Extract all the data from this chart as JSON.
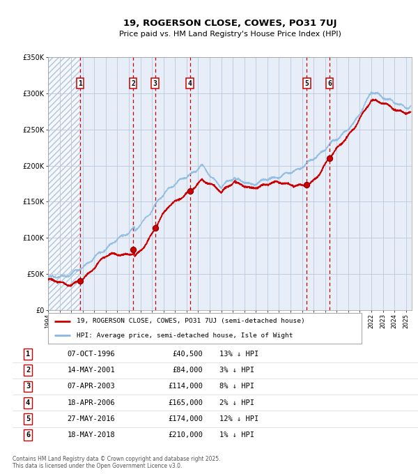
{
  "title": "19, ROGERSON CLOSE, COWES, PO31 7UJ",
  "subtitle": "Price paid vs. HM Land Registry's House Price Index (HPI)",
  "hpi_label": "HPI: Average price, semi-detached house, Isle of Wight",
  "price_label": "19, ROGERSON CLOSE, COWES, PO31 7UJ (semi-detached house)",
  "sales": [
    {
      "num": 1,
      "date": "07-OCT-1996",
      "year": 1996.77,
      "price": 40500,
      "pct": "13%"
    },
    {
      "num": 2,
      "date": "14-MAY-2001",
      "year": 2001.37,
      "price": 84000,
      "pct": "3%"
    },
    {
      "num": 3,
      "date": "07-APR-2003",
      "year": 2003.27,
      "price": 114000,
      "pct": "8%"
    },
    {
      "num": 4,
      "date": "18-APR-2006",
      "year": 2006.3,
      "price": 165000,
      "pct": "2%"
    },
    {
      "num": 5,
      "date": "27-MAY-2016",
      "year": 2016.4,
      "price": 174000,
      "pct": "12%"
    },
    {
      "num": 6,
      "date": "18-MAY-2018",
      "year": 2018.38,
      "price": 210000,
      "pct": "1%"
    }
  ],
  "bg_color": "#e8eef8",
  "grid_color": "#b8c8dc",
  "sale_vline_color": "#cc0000",
  "price_line_color": "#cc0000",
  "hpi_line_color": "#88b8e0",
  "dot_color": "#cc0000",
  "ylim": [
    0,
    350000
  ],
  "yticks": [
    0,
    50000,
    100000,
    150000,
    200000,
    250000,
    300000,
    350000
  ],
  "xmin": 1994.0,
  "xmax": 2025.5,
  "footnote": "Contains HM Land Registry data © Crown copyright and database right 2025.\nThis data is licensed under the Open Government Licence v3.0."
}
